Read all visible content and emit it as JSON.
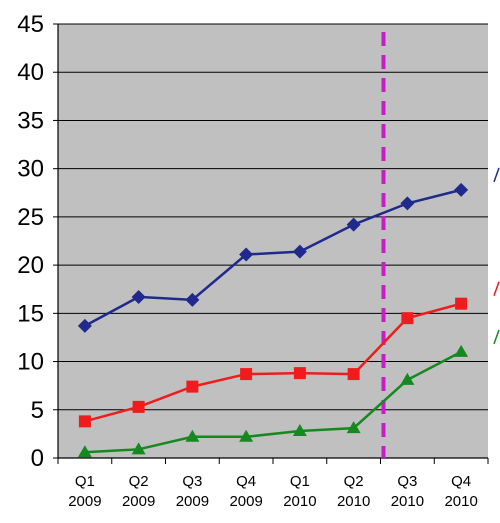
{
  "chart_data": {
    "type": "line",
    "categories": [
      [
        "Q1",
        "2009"
      ],
      [
        "Q2",
        "2009"
      ],
      [
        "Q3",
        "2009"
      ],
      [
        "Q4",
        "2009"
      ],
      [
        "Q1",
        "2010"
      ],
      [
        "Q2",
        "2010"
      ],
      [
        "Q3",
        "2010"
      ],
      [
        "Q4",
        "2010"
      ]
    ],
    "ylim": [
      0,
      45
    ],
    "yticks": [
      "0",
      "5",
      "10",
      "15",
      "20",
      "25",
      "30",
      "35",
      "40",
      "45"
    ],
    "grid": true,
    "plot_background": "#c0c0c0",
    "series": [
      {
        "marker": "diamond",
        "color": "#1f2a8c",
        "values": [
          13.7,
          16.7,
          16.4,
          21.1,
          21.4,
          24.2,
          26.4,
          27.8
        ]
      },
      {
        "marker": "square",
        "color": "#ee1c1c",
        "values": [
          3.8,
          5.3,
          7.4,
          8.7,
          8.8,
          8.7,
          14.5,
          16.0
        ]
      },
      {
        "marker": "triangle",
        "color": "#15891f",
        "values": [
          0.6,
          0.9,
          2.2,
          2.2,
          2.8,
          3.1,
          8.1,
          11.0
        ]
      }
    ],
    "marker_line": {
      "position_between": [
        5,
        6
      ],
      "color": "#c51ec5",
      "style": "dashed"
    }
  }
}
